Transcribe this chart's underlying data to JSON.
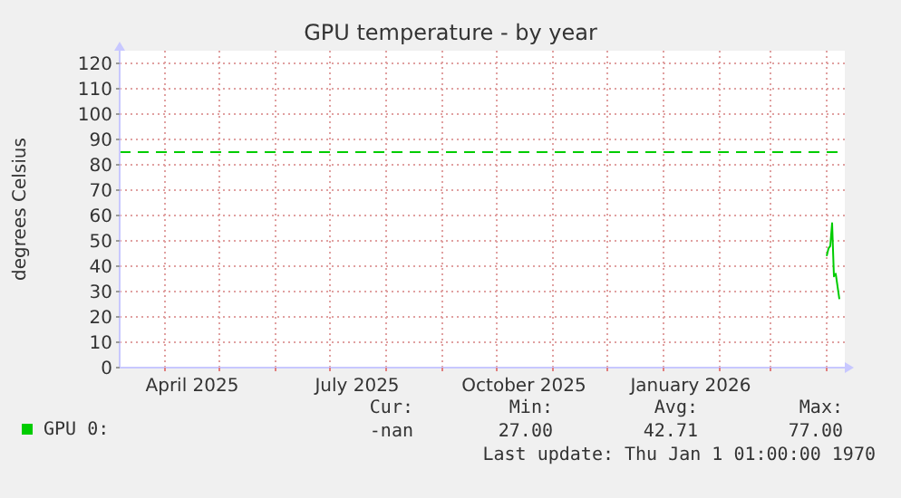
{
  "chart_data": {
    "type": "line",
    "title": "GPU temperature - by year",
    "ylabel": "degrees Celsius",
    "x": [
      "2026-04-01",
      "2026-04-02",
      "2026-04-03",
      "2026-04-04",
      "2026-04-05",
      "2026-04-06",
      "2026-04-07",
      "2026-04-08"
    ],
    "series": [
      {
        "name": "GPU 0:",
        "color": "#00cc00",
        "values": [
          44,
          47,
          48,
          57,
          36,
          37,
          32,
          27
        ]
      }
    ],
    "xlim": [
      "2025-03-07",
      "2026-04-11"
    ],
    "xticks": [
      {
        "value": "2025-04-01",
        "label": null
      },
      {
        "value": "2025-05-01",
        "label": null
      },
      {
        "value": "2025-06-01",
        "label": null
      },
      {
        "value": "2025-07-01",
        "label": null
      },
      {
        "value": "2025-08-01",
        "label": null
      },
      {
        "value": "2025-09-01",
        "label": null
      },
      {
        "value": "2025-10-01",
        "label": null
      },
      {
        "value": "2025-11-01",
        "label": null
      },
      {
        "value": "2025-12-01",
        "label": null
      },
      {
        "value": "2026-01-01",
        "label": null
      },
      {
        "value": "2026-02-01",
        "label": null
      },
      {
        "value": "2026-03-01",
        "label": null
      },
      {
        "value": "2026-04-01",
        "label": null
      },
      {
        "value": "2025-04-16",
        "label": "April 2025"
      },
      {
        "value": "2025-07-16",
        "label": "July 2025"
      },
      {
        "value": "2025-10-16",
        "label": "October 2025"
      },
      {
        "value": "2026-01-16",
        "label": "January 2026"
      }
    ],
    "ylim": [
      0,
      125
    ],
    "yticks": [
      0,
      10,
      20,
      30,
      40,
      50,
      60,
      70,
      80,
      90,
      100,
      110,
      120
    ],
    "grid": true,
    "legend": "bottom",
    "marker": "none",
    "line_style": "solid",
    "ref_lines": [
      {
        "axis": "y",
        "value": 85,
        "color": "#00cc00",
        "line_style": "dashed"
      }
    ],
    "annotations": [
      "Cur:",
      "Min:",
      "Avg:",
      "Max:",
      "-nan",
      "27.00",
      "42.71",
      "77.00",
      "Last update: Thu Jan  1 01:00:00 1970"
    ]
  }
}
